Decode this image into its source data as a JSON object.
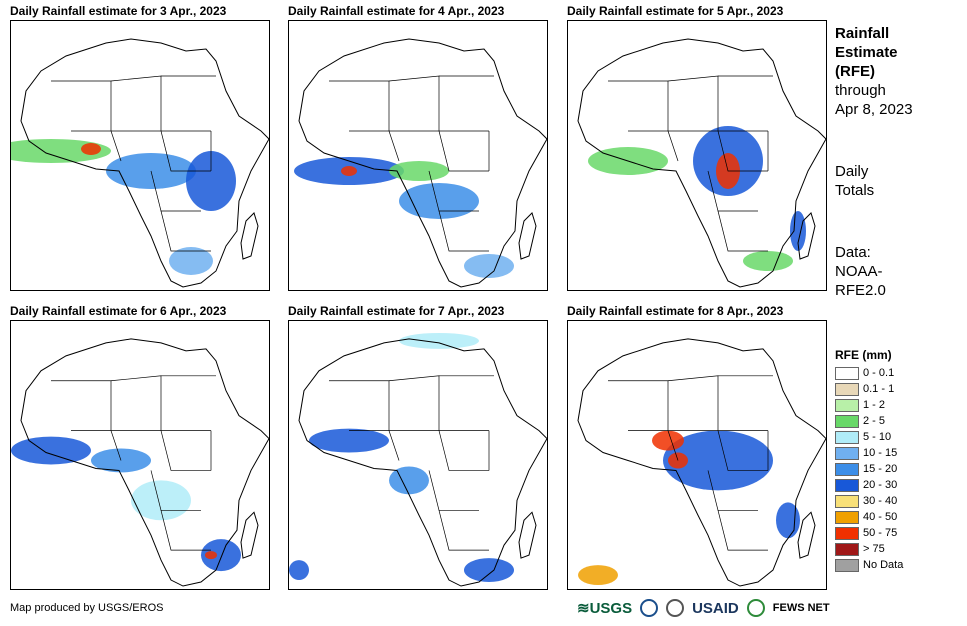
{
  "panels": [
    {
      "title": "Daily Rainfall estimate for 3 Apr., 2023"
    },
    {
      "title": "Daily Rainfall estimate for 4 Apr., 2023"
    },
    {
      "title": "Daily Rainfall estimate for 5 Apr., 2023"
    },
    {
      "title": "Daily Rainfall estimate for 6 Apr., 2023"
    },
    {
      "title": "Daily Rainfall estimate for 7 Apr., 2023"
    },
    {
      "title": "Daily Rainfall estimate for 8 Apr., 2023"
    }
  ],
  "side": {
    "title_line1": "Rainfall",
    "title_line2": "Estimate",
    "title_line3": "(RFE)",
    "through": "through",
    "date": "Apr 8, 2023",
    "daily1": "Daily",
    "daily2": "Totals",
    "data1": "Data:",
    "data2": "NOAA-",
    "data3": "RFE2.0"
  },
  "legend": {
    "title": "RFE (mm)",
    "items": [
      {
        "label": "0 - 0.1",
        "color": "#ffffff"
      },
      {
        "label": "0.1 - 1",
        "color": "#e8d8b8"
      },
      {
        "label": "1 - 2",
        "color": "#b8f0a8"
      },
      {
        "label": "2 - 5",
        "color": "#68d868"
      },
      {
        "label": "5 - 10",
        "color": "#b0ecf8"
      },
      {
        "label": "10 - 15",
        "color": "#70b0f0"
      },
      {
        "label": "15 - 20",
        "color": "#3c8ee8"
      },
      {
        "label": "20 - 30",
        "color": "#1858d8"
      },
      {
        "label": "30 - 40",
        "color": "#f8e078"
      },
      {
        "label": "40 - 50",
        "color": "#f0a000"
      },
      {
        "label": "50 - 75",
        "color": "#f03000"
      },
      {
        "label": "> 75",
        "color": "#a01818"
      },
      {
        "label": "No Data",
        "color": "#a0a0a0"
      }
    ]
  },
  "footer": {
    "credit": "Map produced by USGS/EROS",
    "logo_usgs": "USGS",
    "logo_usaid": "USAID",
    "logo_fews": "FEWS NET"
  }
}
